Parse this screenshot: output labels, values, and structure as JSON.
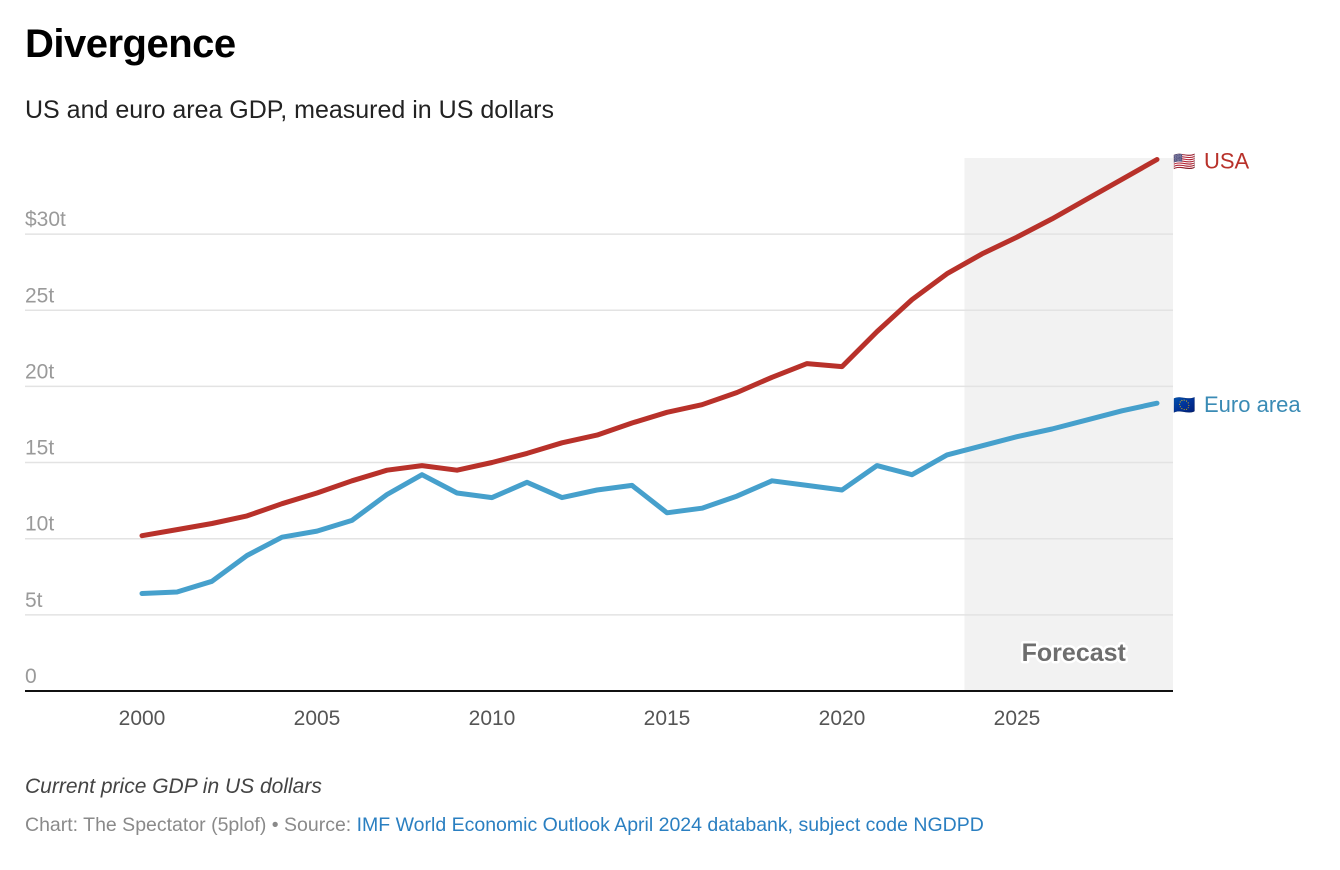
{
  "header": {
    "title": "Divergence",
    "subtitle": "US and euro area GDP, measured in US dollars"
  },
  "footer": {
    "note": "Current price GDP in US dollars",
    "credit_prefix": "Chart: The Spectator (5plof) • Source: ",
    "source_link": "IMF World Economic Outlook April 2024 databank, subject code NGDPD"
  },
  "colors": {
    "usa": "#b8312a",
    "euro": "#46a0cc",
    "euro_label": "#3a8bb5",
    "grid": "#e3e3e3",
    "forecast_shade": "#f2f2f2",
    "axis": "#111111"
  },
  "chart_data": {
    "type": "line",
    "title": "Divergence",
    "subtitle": "US and euro area GDP, measured in US dollars",
    "xlabel": "",
    "ylabel": "",
    "unit": "trillion US dollars",
    "x": [
      2000,
      2001,
      2002,
      2003,
      2004,
      2005,
      2006,
      2007,
      2008,
      2009,
      2010,
      2011,
      2012,
      2013,
      2014,
      2015,
      2016,
      2017,
      2018,
      2019,
      2020,
      2021,
      2022,
      2023,
      2024,
      2025,
      2026,
      2027,
      2028,
      2029
    ],
    "series": [
      {
        "name": "USA",
        "flag": "🇺🇸",
        "color": "#b8312a",
        "values": [
          10.2,
          10.6,
          11.0,
          11.5,
          12.3,
          13.0,
          13.8,
          14.5,
          14.8,
          14.5,
          15.0,
          15.6,
          16.3,
          16.8,
          17.6,
          18.3,
          18.8,
          19.6,
          20.6,
          21.5,
          21.3,
          23.6,
          25.7,
          27.4,
          28.7,
          29.8,
          31.0,
          32.3,
          33.6,
          34.9
        ]
      },
      {
        "name": "Euro area",
        "flag": "🇪🇺",
        "color": "#46a0cc",
        "values": [
          6.4,
          6.5,
          7.2,
          8.9,
          10.1,
          10.5,
          11.2,
          12.9,
          14.2,
          13.0,
          12.7,
          13.7,
          12.7,
          13.2,
          13.5,
          11.7,
          12.0,
          12.8,
          13.8,
          13.5,
          13.2,
          14.8,
          14.2,
          15.5,
          16.1,
          16.7,
          17.2,
          17.8,
          18.4,
          18.9
        ]
      }
    ],
    "xlim": [
      1997.7,
      2029.5
    ],
    "ylim": [
      0,
      35
    ],
    "x_ticks": [
      2000,
      2005,
      2010,
      2015,
      2020,
      2025
    ],
    "x_tick_labels": [
      "2000",
      "2005",
      "2010",
      "2015",
      "2020",
      "2025"
    ],
    "y_ticks": [
      0,
      5,
      10,
      15,
      20,
      25,
      30
    ],
    "y_tick_labels": [
      "0",
      "5t",
      "10t",
      "15t",
      "20t",
      "25t",
      "$30t"
    ],
    "grid": true,
    "legend": "direct labels at line ends (right)",
    "annotations": [
      {
        "text": "Forecast",
        "region_start": 2023.5,
        "region_end": 2029.5,
        "placement": "bottom-center of shaded region"
      }
    ]
  }
}
